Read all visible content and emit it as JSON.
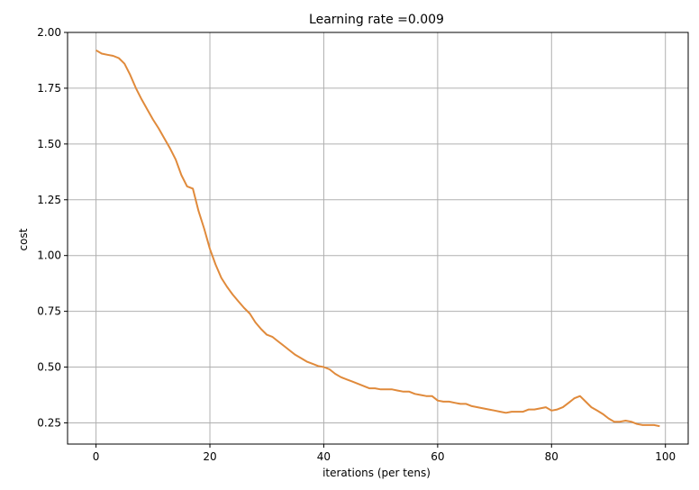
{
  "chart_data": {
    "type": "line",
    "title": "Learning rate =0.009",
    "xlabel": "iterations (per tens)",
    "ylabel": "cost",
    "xlim": [
      -5,
      104
    ],
    "ylim": [
      0.155,
      2.0
    ],
    "xticks": [
      0,
      20,
      40,
      60,
      80,
      100
    ],
    "yticks": [
      0.25,
      0.5,
      0.75,
      1.0,
      1.25,
      1.5,
      1.75,
      2.0
    ],
    "xtick_labels": [
      "0",
      "20",
      "40",
      "60",
      "80",
      "100"
    ],
    "ytick_labels": [
      "0.25",
      "0.50",
      "0.75",
      "1.00",
      "1.25",
      "1.50",
      "1.75",
      "2.00"
    ],
    "grid": true,
    "line_color": "#e08a3b",
    "series": [
      {
        "x": [
          0,
          1,
          2,
          3,
          4,
          5,
          6,
          7,
          8,
          9,
          10,
          11,
          12,
          13,
          14,
          15,
          16,
          17,
          18,
          19,
          20,
          21,
          22,
          23,
          24,
          25,
          26,
          27,
          28,
          29,
          30,
          31,
          32,
          33,
          34,
          35,
          36,
          37,
          38,
          39,
          40,
          41,
          42,
          43,
          44,
          45,
          46,
          47,
          48,
          49,
          50,
          51,
          52,
          53,
          54,
          55,
          56,
          57,
          58,
          59,
          60,
          61,
          62,
          63,
          64,
          65,
          66,
          67,
          68,
          69,
          70,
          71,
          72,
          73,
          74,
          75,
          76,
          77,
          78,
          79,
          80,
          81,
          82,
          83,
          84,
          85,
          86,
          87,
          88,
          89,
          90,
          91,
          92,
          93,
          94,
          95,
          96,
          97,
          98,
          99
        ],
        "y": [
          1.92,
          1.905,
          1.9,
          1.895,
          1.885,
          1.86,
          1.81,
          1.75,
          1.7,
          1.655,
          1.61,
          1.57,
          1.525,
          1.48,
          1.43,
          1.36,
          1.31,
          1.3,
          1.2,
          1.12,
          1.03,
          0.96,
          0.9,
          0.86,
          0.825,
          0.795,
          0.765,
          0.74,
          0.7,
          0.67,
          0.645,
          0.635,
          0.615,
          0.595,
          0.575,
          0.555,
          0.54,
          0.525,
          0.515,
          0.505,
          0.5,
          0.49,
          0.47,
          0.455,
          0.445,
          0.435,
          0.425,
          0.415,
          0.405,
          0.405,
          0.4,
          0.4,
          0.4,
          0.395,
          0.39,
          0.39,
          0.38,
          0.375,
          0.37,
          0.37,
          0.35,
          0.345,
          0.345,
          0.34,
          0.335,
          0.335,
          0.325,
          0.32,
          0.315,
          0.31,
          0.305,
          0.3,
          0.295,
          0.3,
          0.3,
          0.3,
          0.31,
          0.31,
          0.315,
          0.32,
          0.305,
          0.31,
          0.32,
          0.34,
          0.36,
          0.37,
          0.345,
          0.32,
          0.305,
          0.29,
          0.27,
          0.255,
          0.255,
          0.26,
          0.255,
          0.245,
          0.24,
          0.24,
          0.24,
          0.235
        ]
      }
    ]
  }
}
